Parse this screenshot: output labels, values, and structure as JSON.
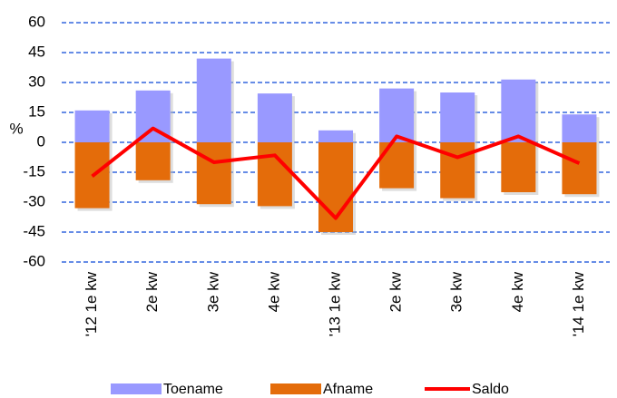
{
  "chart_data": {
    "type": "bar_line",
    "y_label": "%",
    "categories": [
      "'12 1e kw",
      "2e kw",
      "3e kw",
      "4e kw",
      "'13 1e kw",
      "2e kw",
      "3e kw",
      "4e kw",
      "'14 1e kw"
    ],
    "series": [
      {
        "name": "Toename",
        "type": "bar",
        "color": "#9999ff",
        "values": [
          16,
          26,
          42,
          24.5,
          6,
          27,
          25,
          31.5,
          14
        ]
      },
      {
        "name": "Afname",
        "type": "bar",
        "color": "#e46c0a",
        "values": [
          -33,
          -19,
          -31,
          -32,
          -45,
          -23,
          -28,
          -25,
          -26
        ]
      },
      {
        "name": "Saldo",
        "type": "line",
        "color": "#ff0000",
        "values": [
          -17,
          7,
          -10,
          -6.5,
          -38,
          3,
          -7.5,
          3,
          -10.5
        ]
      }
    ],
    "ylim": [
      -60,
      60
    ],
    "yticks": [
      -60,
      -45,
      -30,
      -15,
      0,
      15,
      30,
      45,
      60
    ],
    "grid": true,
    "legend": "bottom"
  }
}
